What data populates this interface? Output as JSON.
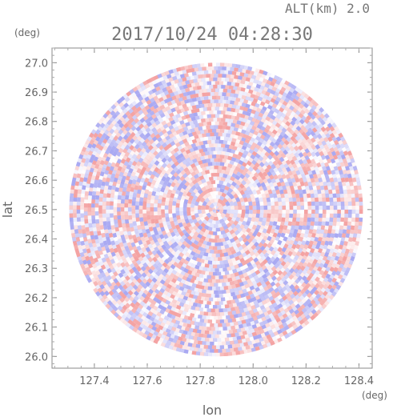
{
  "header": {
    "altitude": "ALT(km)  2.0",
    "timestamp": "2017/10/24 04:28:30"
  },
  "chart_data": {
    "type": "heatmap",
    "title": "2017/10/24 04:28:30",
    "xlabel": "lon",
    "ylabel": "lat",
    "x_unit": "(deg)",
    "y_unit": "(deg)",
    "xlim": [
      127.24,
      128.45
    ],
    "ylim": [
      25.96,
      27.05
    ],
    "x_ticks": [
      "127.4",
      "127.6",
      "127.8",
      "128.0",
      "128.2",
      "128.4"
    ],
    "y_ticks": [
      "26.0",
      "26.1",
      "26.2",
      "26.3",
      "26.4",
      "26.5",
      "26.6",
      "26.7",
      "26.8",
      "26.9",
      "27.0"
    ],
    "domain": {
      "shape": "circle",
      "center_lon": 127.86,
      "center_lat": 26.5,
      "radius_lat_deg": 0.5
    },
    "colors": {
      "positive": "#f4a3a3",
      "negative": "#a9a9f2",
      "neutral": "#ffffff"
    },
    "grid": false
  }
}
